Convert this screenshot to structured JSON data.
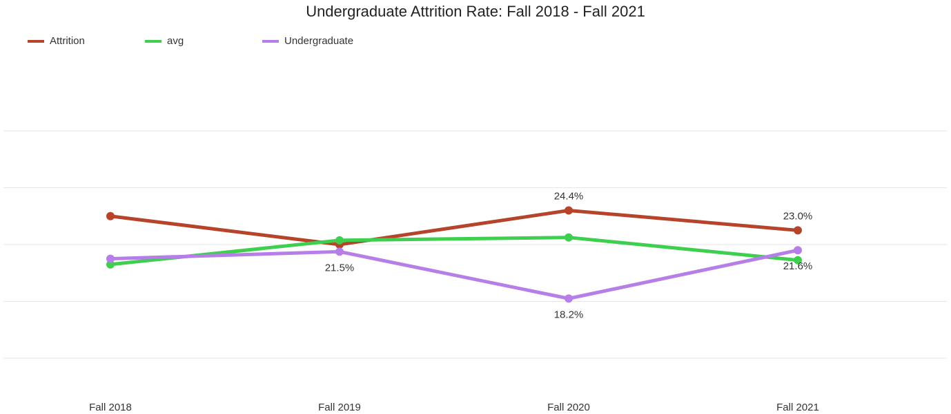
{
  "chart_data": {
    "type": "line",
    "title": "Undergraduate Attrition Rate: Fall 2018 - Fall 2021",
    "categories": [
      "Fall 2018",
      "Fall 2019",
      "Fall 2020",
      "Fall 2021"
    ],
    "series": [
      {
        "name": "Attrition",
        "color": "#b5442a",
        "values": [
          24.0,
          22.0,
          24.4,
          23.0
        ],
        "value_labels": [
          null,
          null,
          "24.4%",
          "23.0%"
        ]
      },
      {
        "name": "avg",
        "color": "#3ecf4f",
        "values": [
          20.6,
          22.3,
          22.5,
          20.9
        ],
        "value_labels": [
          null,
          null,
          null,
          null
        ]
      },
      {
        "name": "Undergraduate",
        "color": "#b57ee8",
        "values": [
          21.0,
          21.5,
          18.2,
          21.6
        ],
        "value_labels": [
          null,
          "21.5%",
          "18.2%",
          "21.6%"
        ]
      }
    ],
    "ylim": [
      14,
      30
    ],
    "yticks": [
      14,
      18,
      22,
      26,
      30
    ],
    "grid": true
  }
}
